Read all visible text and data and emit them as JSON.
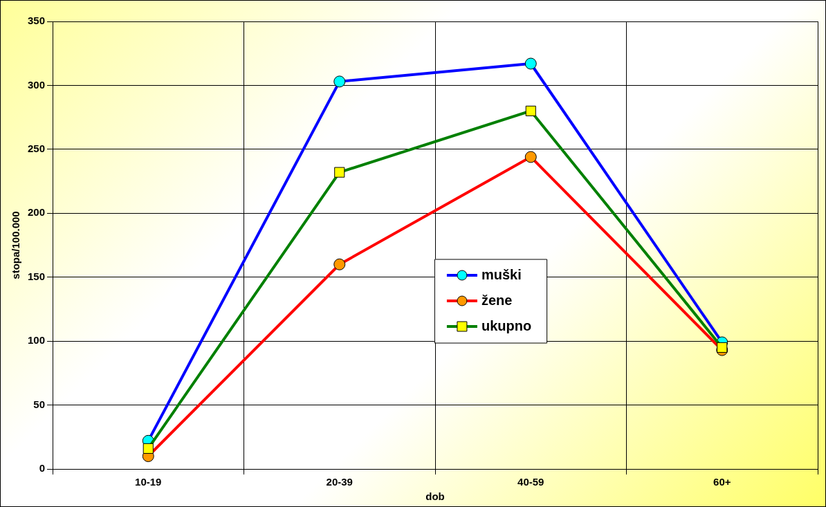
{
  "chart_data": {
    "type": "line",
    "xlabel": "dob",
    "ylabel": "stopa/100.000",
    "categories": [
      "10-19",
      "20-39",
      "40-59",
      "60+"
    ],
    "series": [
      {
        "name": "muški",
        "color": "#0000ff",
        "marker": "circle",
        "values": [
          22,
          303,
          317,
          99
        ]
      },
      {
        "name": "žene",
        "color": "#ff0000",
        "marker": "circle",
        "values": [
          10,
          160,
          244,
          93
        ]
      },
      {
        "name": "ukupno",
        "color": "#008000",
        "marker": "square",
        "values": [
          16,
          232,
          280,
          95
        ]
      }
    ],
    "ylim": [
      0,
      350
    ],
    "yticks": [
      0,
      50,
      100,
      150,
      200,
      250,
      300,
      350
    ],
    "grid": true,
    "legend": "center"
  }
}
